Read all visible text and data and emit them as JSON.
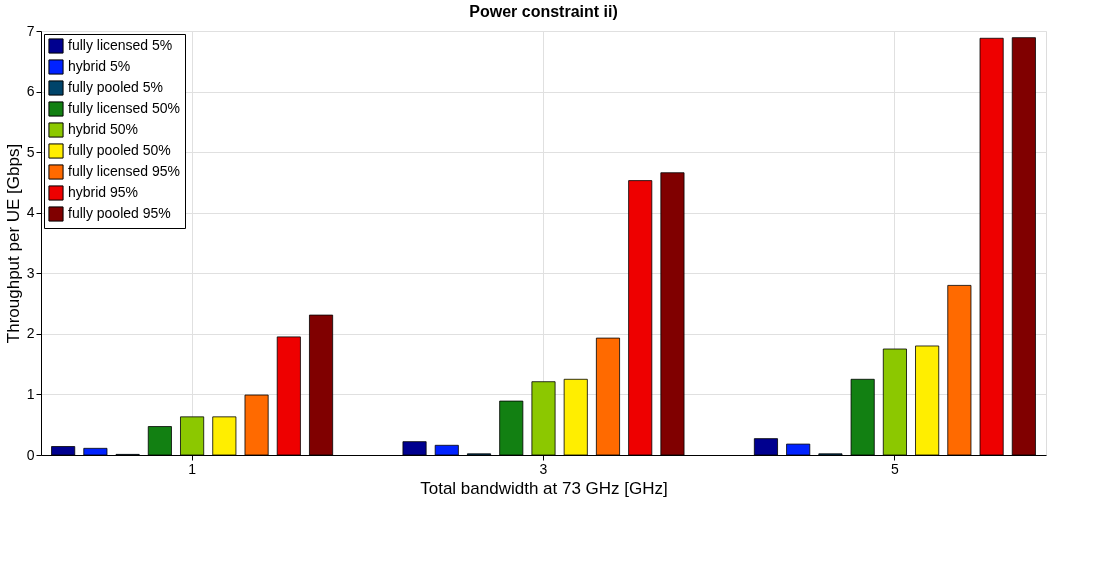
{
  "chart_data": {
    "type": "bar",
    "title": "Power constraint  ii)",
    "xlabel": "Total bandwidth at 73 GHz [GHz]",
    "ylabel": "Throughput per UE [Gbps]",
    "categories": [
      "1",
      "3",
      "5"
    ],
    "series": [
      {
        "name": "fully licensed 5%",
        "color": "#00008f",
        "values": [
          0.14,
          0.22,
          0.27
        ]
      },
      {
        "name": "hybrid 5%",
        "color": "#0022ff",
        "values": [
          0.11,
          0.16,
          0.18
        ]
      },
      {
        "name": "fully pooled 5%",
        "color": "#00446a",
        "values": [
          0.01,
          0.02,
          0.02
        ]
      },
      {
        "name": "fully licensed 50%",
        "color": "#128012",
        "values": [
          0.47,
          0.89,
          1.25
        ]
      },
      {
        "name": "hybrid 50%",
        "color": "#8cc800",
        "values": [
          0.63,
          1.21,
          1.75
        ]
      },
      {
        "name": "fully pooled 50%",
        "color": "#ffee00",
        "values": [
          0.63,
          1.25,
          1.8
        ]
      },
      {
        "name": "fully licensed 95%",
        "color": "#ff6a00",
        "values": [
          0.99,
          1.93,
          2.8
        ]
      },
      {
        "name": "hybrid 95%",
        "color": "#ee0000",
        "values": [
          1.95,
          4.53,
          6.88
        ]
      },
      {
        "name": "fully pooled 95%",
        "color": "#800000",
        "values": [
          2.31,
          4.66,
          6.89
        ]
      }
    ],
    "ylim": [
      0,
      7
    ],
    "yticks": [
      0,
      1,
      2,
      3,
      4,
      5,
      6,
      7
    ],
    "grid": true,
    "legend": "top left"
  }
}
